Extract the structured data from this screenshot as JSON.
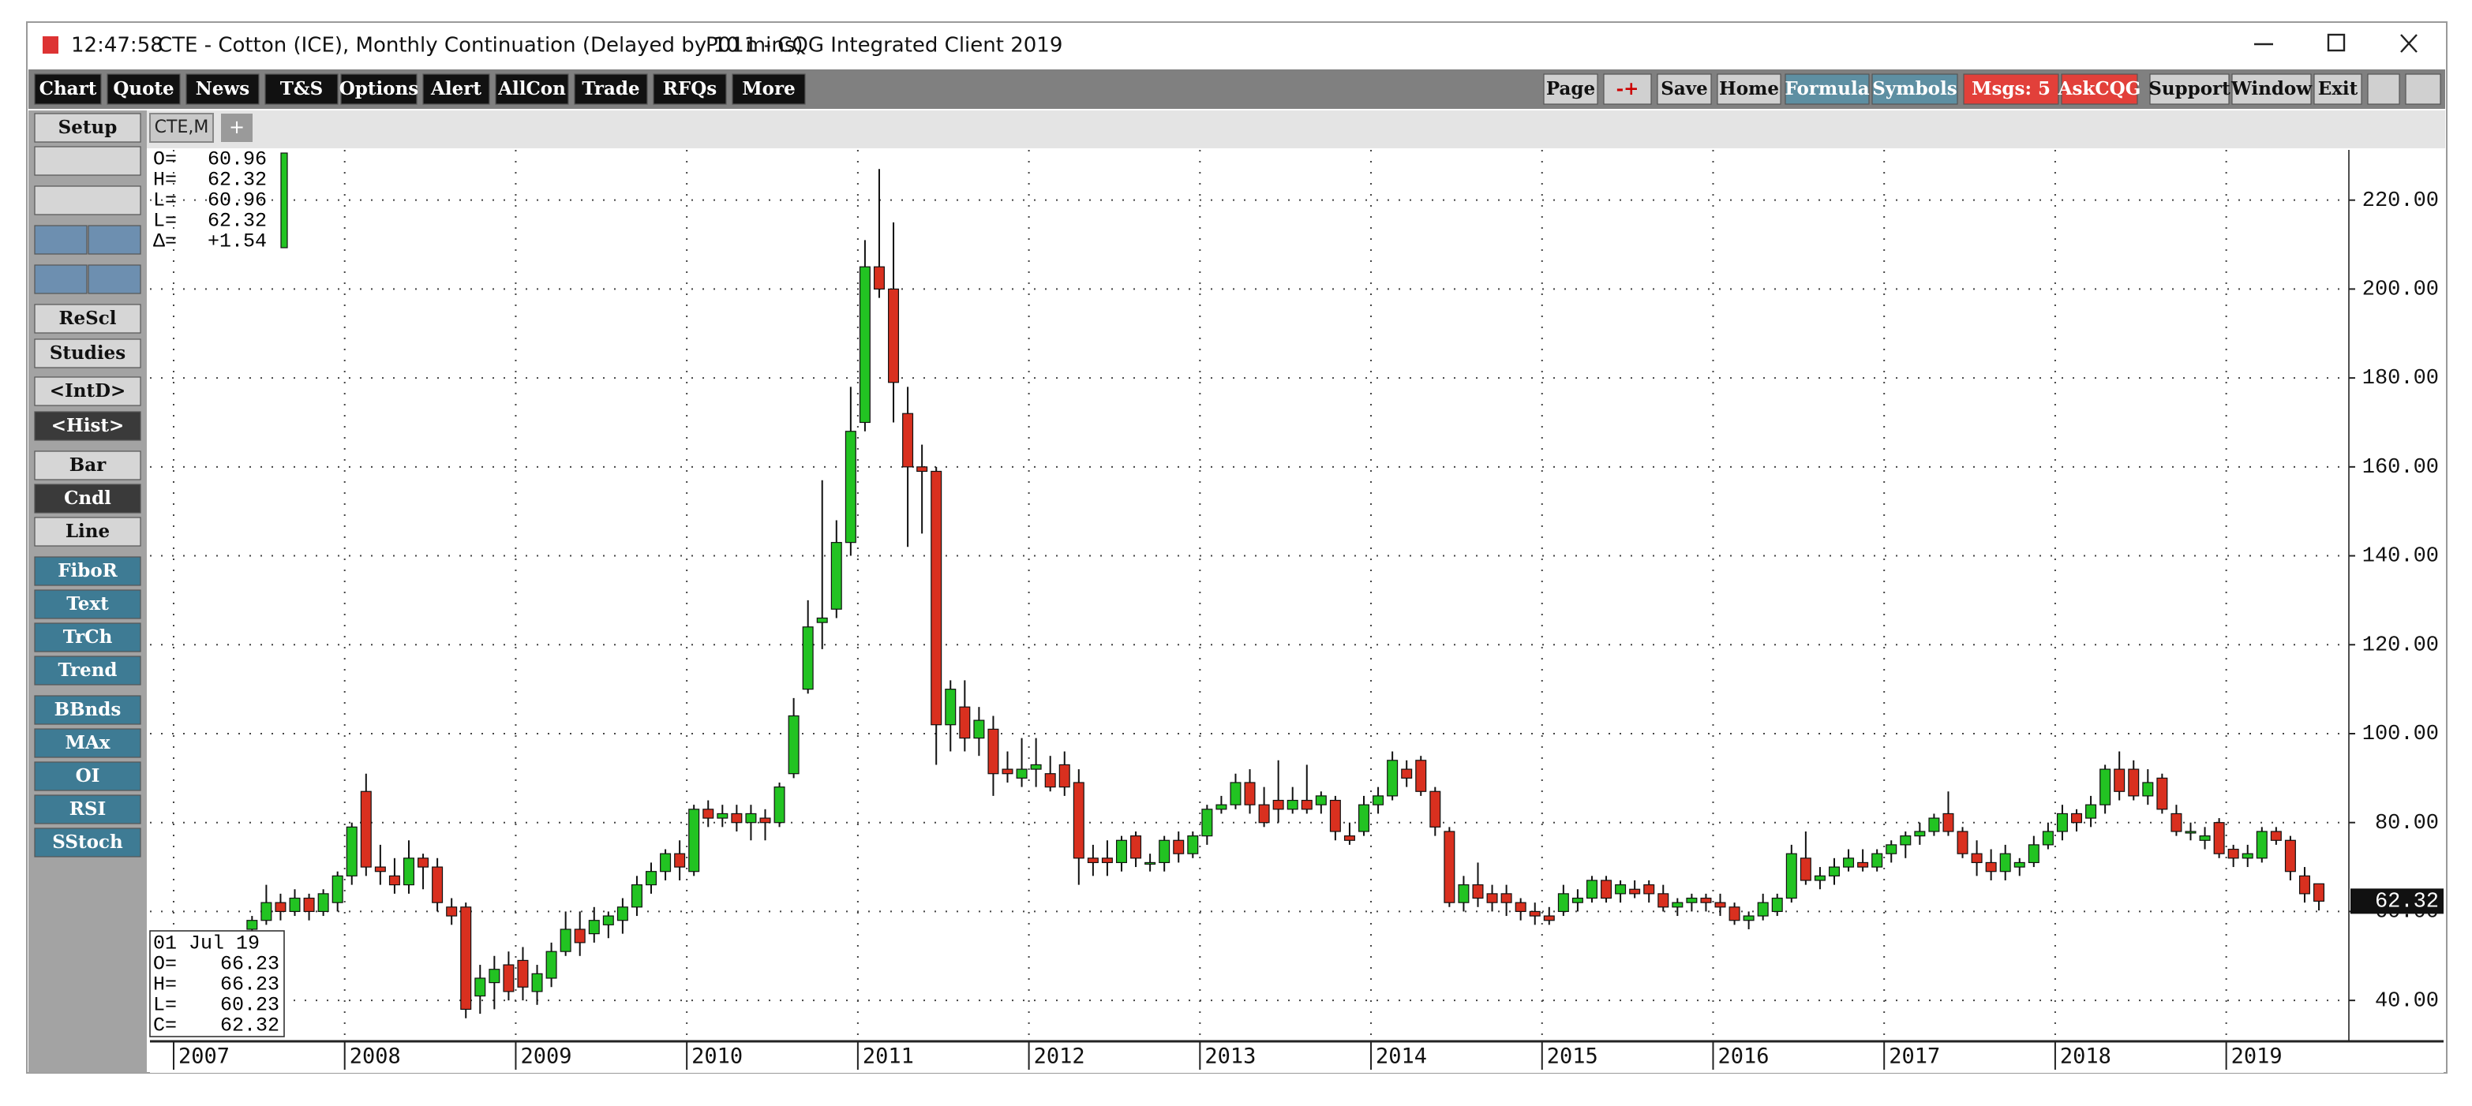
{
  "window": {
    "time": "12:47:58",
    "title": "CTE - Cotton (ICE), Monthly Continuation (Delayed by 10 mins)",
    "client": "P011 - CQG Integrated Client 2019"
  },
  "toolbar_left": [
    "Chart",
    "Quote",
    "News",
    "T&S",
    "Options",
    "Alert",
    "AllCon",
    "Trade",
    "RFQs",
    "More"
  ],
  "toolbar_right": [
    "Page",
    "-+",
    "Save",
    "Home",
    "Formula",
    "Symbols",
    "Msgs: 5",
    "AskCQG",
    "Support",
    "Window",
    "Exit"
  ],
  "sidebar": [
    "Setup",
    "ReScl",
    "Studies",
    "<IntD>",
    "<Hist>",
    "Bar",
    "Cndl",
    "Line",
    "FiboR",
    "Text",
    "TrCh",
    "Trend",
    "BBnds",
    "MAx",
    "OI",
    "RSI",
    "SStoch"
  ],
  "tab": "CTE,M",
  "tab_add": "+",
  "daily_quote": {
    "rows": [
      [
        "O=",
        "60.96"
      ],
      [
        "H=",
        "62.32"
      ],
      [
        "L=",
        "60.96"
      ],
      [
        "L=",
        "62.32"
      ],
      [
        "Δ=",
        "+1.54"
      ]
    ]
  },
  "cursor_quote": {
    "date": "01 Jul 19",
    "rows": [
      [
        "O=",
        "66.23"
      ],
      [
        "H=",
        "66.23"
      ],
      [
        "L=",
        "60.23"
      ],
      [
        "C=",
        "62.32"
      ]
    ]
  },
  "chart_data": {
    "type": "candlestick",
    "up_color": "#22c322",
    "down_color": "#d9301f",
    "grid": true,
    "ylim": [
      30.8,
      231.3
    ],
    "yticks": [
      {
        "value": 40,
        "label": "40.00"
      },
      {
        "value": 60,
        "label": "60.00"
      },
      {
        "value": 80,
        "label": "80.00"
      },
      {
        "value": 100,
        "label": "100.00"
      },
      {
        "value": 120,
        "label": "120.00"
      },
      {
        "value": 140,
        "label": "140.00"
      },
      {
        "value": 160,
        "label": "160.00"
      },
      {
        "value": 180,
        "label": "180.00"
      },
      {
        "value": 200,
        "label": "200.00"
      },
      {
        "value": 220,
        "label": "220.00"
      }
    ],
    "last_price": 62.32,
    "categories": [
      "2007",
      null,
      null,
      null,
      null,
      null,
      null,
      null,
      null,
      null,
      null,
      null,
      "2008",
      null,
      null,
      null,
      null,
      null,
      null,
      null,
      null,
      null,
      null,
      null,
      "2009",
      null,
      null,
      null,
      null,
      null,
      null,
      null,
      null,
      null,
      null,
      null,
      "2010",
      null,
      null,
      null,
      null,
      null,
      null,
      null,
      null,
      null,
      null,
      null,
      "2011",
      null,
      null,
      null,
      null,
      null,
      null,
      null,
      null,
      null,
      null,
      null,
      "2012",
      null,
      null,
      null,
      null,
      null,
      null,
      null,
      null,
      null,
      null,
      null,
      "2013",
      null,
      null,
      null,
      null,
      null,
      null,
      null,
      null,
      null,
      null,
      null,
      "2014",
      null,
      null,
      null,
      null,
      null,
      null,
      null,
      null,
      null,
      null,
      null,
      "2015",
      null,
      null,
      null,
      null,
      null,
      null,
      null,
      null,
      null,
      null,
      null,
      "2016",
      null,
      null,
      null,
      null,
      null,
      null,
      null,
      null,
      null,
      null,
      null,
      "2017",
      null,
      null,
      null,
      null,
      null,
      null,
      null,
      null,
      null,
      null,
      null,
      "2018",
      null,
      null,
      null,
      null,
      null,
      null,
      null,
      null,
      null,
      null,
      null,
      "2019",
      null,
      null,
      null,
      null,
      null,
      null
    ],
    "ohlc": [
      null,
      null,
      null,
      null,
      null,
      [
        56,
        59,
        55,
        58
      ],
      [
        58,
        66,
        57,
        62
      ],
      [
        62,
        64,
        58,
        60
      ],
      [
        60,
        65,
        59,
        63
      ],
      [
        63,
        64,
        58,
        60
      ],
      [
        60,
        65,
        59,
        64
      ],
      [
        62,
        69,
        60,
        68
      ],
      [
        68,
        80,
        66,
        79
      ],
      [
        87,
        91,
        68,
        70
      ],
      [
        70,
        75,
        66,
        69
      ],
      [
        68,
        72,
        64,
        66
      ],
      [
        66,
        76,
        64,
        72
      ],
      [
        72,
        73,
        65,
        70
      ],
      [
        70,
        72,
        60,
        62
      ],
      [
        61,
        63,
        57,
        59
      ],
      [
        61,
        62,
        36,
        38
      ],
      [
        41,
        48,
        37,
        45
      ],
      [
        44,
        50,
        38,
        47
      ],
      [
        48,
        51,
        40,
        42
      ],
      [
        49,
        52,
        40,
        43
      ],
      [
        42,
        48,
        39,
        46
      ],
      [
        45,
        53,
        43,
        51
      ],
      [
        51,
        60,
        50,
        56
      ],
      [
        56,
        60,
        50,
        53
      ],
      [
        55,
        61,
        53,
        58
      ],
      [
        57,
        60,
        54,
        59
      ],
      [
        58,
        63,
        55,
        61
      ],
      [
        61,
        68,
        59,
        66
      ],
      [
        66,
        71,
        64,
        69
      ],
      [
        69,
        74,
        67,
        73
      ],
      [
        73,
        76,
        67,
        70
      ],
      [
        69,
        84,
        68,
        83
      ],
      [
        83,
        85,
        79,
        81
      ],
      [
        81,
        84,
        79,
        82
      ],
      [
        82,
        84,
        78,
        80
      ],
      [
        80,
        84,
        76,
        82
      ],
      [
        81,
        83,
        76,
        80
      ],
      [
        80,
        89,
        79,
        88
      ],
      [
        91,
        108,
        90,
        104
      ],
      [
        110,
        130,
        109,
        124
      ],
      [
        125,
        157,
        119,
        126
      ],
      [
        128,
        148,
        126,
        143
      ],
      [
        143,
        178,
        140,
        168
      ],
      [
        170,
        211,
        168,
        205
      ],
      [
        205,
        227,
        198,
        200
      ],
      [
        200,
        215,
        170,
        179
      ],
      [
        172,
        178,
        142,
        160
      ],
      [
        160,
        165,
        145,
        159
      ],
      [
        159,
        160,
        93,
        102
      ],
      [
        102,
        112,
        96,
        110
      ],
      [
        106,
        112,
        96,
        99
      ],
      [
        99,
        106,
        95,
        103
      ],
      [
        101,
        104,
        86,
        91
      ],
      [
        92,
        96,
        89,
        91
      ],
      [
        90,
        99,
        88,
        92
      ],
      [
        92,
        99,
        88,
        93
      ],
      [
        91,
        95,
        87,
        88
      ],
      [
        93,
        96,
        86,
        88
      ],
      [
        89,
        92,
        66,
        72
      ],
      [
        72,
        75,
        68,
        71
      ],
      [
        72,
        76,
        68,
        71
      ],
      [
        71,
        77,
        69,
        76
      ],
      [
        77,
        78,
        70,
        72
      ],
      [
        71,
        73,
        69,
        71
      ],
      [
        71,
        77,
        69,
        76
      ],
      [
        76,
        78,
        71,
        73
      ],
      [
        73,
        78,
        72,
        77
      ],
      [
        77,
        84,
        75,
        83
      ],
      [
        83,
        86,
        82,
        84
      ],
      [
        84,
        91,
        83,
        89
      ],
      [
        89,
        92,
        82,
        84
      ],
      [
        84,
        88,
        79,
        80
      ],
      [
        85,
        94,
        80,
        83
      ],
      [
        83,
        88,
        82,
        85
      ],
      [
        85,
        93,
        82,
        83
      ],
      [
        84,
        87,
        82,
        86
      ],
      [
        85,
        86,
        76,
        78
      ],
      [
        77,
        80,
        75,
        76
      ],
      [
        78,
        86,
        77,
        84
      ],
      [
        84,
        88,
        82,
        86
      ],
      [
        86,
        96,
        85,
        94
      ],
      [
        92,
        94,
        88,
        90
      ],
      [
        94,
        95,
        86,
        87
      ],
      [
        87,
        88,
        77,
        79
      ],
      [
        78,
        79,
        61,
        62
      ],
      [
        62,
        68,
        60,
        66
      ],
      [
        66,
        71,
        61,
        63
      ],
      [
        64,
        66,
        60,
        62
      ],
      [
        64,
        66,
        59,
        62
      ],
      [
        62,
        63,
        58,
        60
      ],
      [
        60,
        62,
        57,
        59
      ],
      [
        59,
        61,
        57,
        58
      ],
      [
        60,
        66,
        59,
        64
      ],
      [
        62,
        65,
        60,
        63
      ],
      [
        63,
        68,
        62,
        67
      ],
      [
        67,
        68,
        62,
        63
      ],
      [
        64,
        67,
        62,
        66
      ],
      [
        65,
        67,
        63,
        64
      ],
      [
        66,
        67,
        62,
        64
      ],
      [
        64,
        66,
        60,
        61
      ],
      [
        61,
        63,
        59,
        62
      ],
      [
        62,
        64,
        60,
        63
      ],
      [
        63,
        64,
        60,
        62
      ],
      [
        62,
        64,
        59,
        61
      ],
      [
        61,
        62,
        57,
        58
      ],
      [
        58,
        60,
        56,
        59
      ],
      [
        59,
        64,
        58,
        62
      ],
      [
        60,
        64,
        59,
        63
      ],
      [
        63,
        75,
        62,
        73
      ],
      [
        72,
        78,
        66,
        67
      ],
      [
        67,
        70,
        65,
        68
      ],
      [
        68,
        72,
        66,
        70
      ],
      [
        70,
        74,
        69,
        72
      ],
      [
        71,
        74,
        69,
        70
      ],
      [
        70,
        74,
        69,
        73
      ],
      [
        73,
        76,
        71,
        75
      ],
      [
        75,
        78,
        72,
        77
      ],
      [
        77,
        80,
        75,
        78
      ],
      [
        78,
        82,
        77,
        81
      ],
      [
        82,
        87,
        77,
        78
      ],
      [
        78,
        79,
        72,
        73
      ],
      [
        73,
        76,
        68,
        71
      ],
      [
        71,
        74,
        67,
        69
      ],
      [
        69,
        75,
        67,
        73
      ],
      [
        70,
        72,
        68,
        71
      ],
      [
        71,
        77,
        70,
        75
      ],
      [
        75,
        80,
        74,
        78
      ],
      [
        78,
        84,
        76,
        82
      ],
      [
        82,
        83,
        78,
        80
      ],
      [
        81,
        86,
        79,
        84
      ],
      [
        84,
        93,
        82,
        92
      ],
      [
        92,
        96,
        85,
        87
      ],
      [
        92,
        94,
        85,
        86
      ],
      [
        86,
        92,
        84,
        89
      ],
      [
        90,
        91,
        82,
        83
      ],
      [
        82,
        84,
        77,
        78
      ],
      [
        78,
        80,
        76,
        78
      ],
      [
        76,
        79,
        74,
        77
      ],
      [
        80,
        81,
        72,
        73
      ],
      [
        74,
        75,
        70,
        72
      ],
      [
        72,
        75,
        70,
        73
      ],
      [
        72,
        79,
        71,
        78
      ],
      [
        78,
        79,
        75,
        76
      ],
      [
        76,
        77,
        67,
        69
      ],
      [
        68,
        70,
        62,
        64
      ],
      [
        66.23,
        66.23,
        60.23,
        62.32
      ]
    ]
  }
}
